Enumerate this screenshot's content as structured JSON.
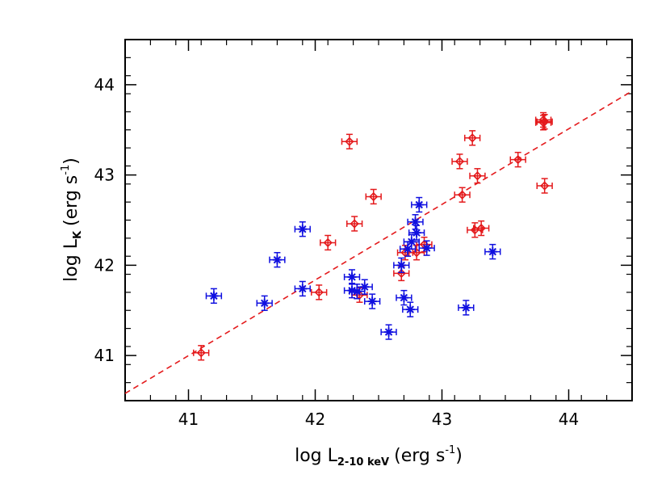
{
  "chart_data": {
    "type": "scatter",
    "xlabel": "log L",
    "xlabel_subscript": "2-10 keV",
    "xlabel_units": "(erg s",
    "xlabel_units_exp": "-1",
    "xlabel_units_close": ")",
    "ylabel": "log L",
    "ylabel_subscript": "K",
    "ylabel_units": "(erg s",
    "ylabel_units_exp": "-1",
    "ylabel_units_close": ")",
    "xlim": [
      40.5,
      44.5
    ],
    "ylim": [
      40.5,
      44.5
    ],
    "xticks": [
      41,
      42,
      43,
      44
    ],
    "yticks": [
      41,
      42,
      43,
      44
    ],
    "xtick_labels": [
      "41",
      "42",
      "43",
      "44"
    ],
    "ytick_labels": [
      "41",
      "42",
      "43",
      "44"
    ],
    "grid": false,
    "fit_line": {
      "x": [
        40.5,
        44.5
      ],
      "y": [
        40.58,
        43.93
      ],
      "color": "#e41a1c",
      "style": "dashed"
    },
    "series": [
      {
        "marker": "diamond",
        "color": "#e41a1c",
        "x": [
          41.1,
          42.03,
          42.1,
          42.27,
          42.31,
          42.35,
          42.46,
          42.68,
          42.71,
          42.8,
          42.86,
          43.14,
          43.16,
          43.24,
          43.26,
          43.28,
          43.31,
          43.6,
          43.8,
          43.8,
          43.81,
          43.81
        ],
        "y": [
          41.03,
          41.7,
          42.25,
          43.37,
          42.46,
          41.67,
          42.76,
          41.91,
          42.14,
          42.14,
          42.23,
          43.15,
          42.78,
          43.41,
          42.39,
          42.99,
          42.41,
          43.17,
          43.58,
          43.61,
          42.88,
          43.59
        ],
        "x_err": 0.06,
        "y_err": 0.08
      },
      {
        "marker": "asterisk",
        "color": "#1010e0",
        "x": [
          41.2,
          41.6,
          41.7,
          41.9,
          41.9,
          42.29,
          42.29,
          42.33,
          42.39,
          42.45,
          42.58,
          42.68,
          42.7,
          42.73,
          42.75,
          42.76,
          42.79,
          42.8,
          42.82,
          42.88,
          43.19,
          43.4
        ],
        "y": [
          41.66,
          41.58,
          42.06,
          41.74,
          42.4,
          41.87,
          41.72,
          41.71,
          41.76,
          41.6,
          41.26,
          42.0,
          41.64,
          42.18,
          41.51,
          42.26,
          42.48,
          42.36,
          42.67,
          42.19,
          41.53,
          42.15
        ],
        "x_err": 0.06,
        "y_err": 0.08
      }
    ]
  }
}
